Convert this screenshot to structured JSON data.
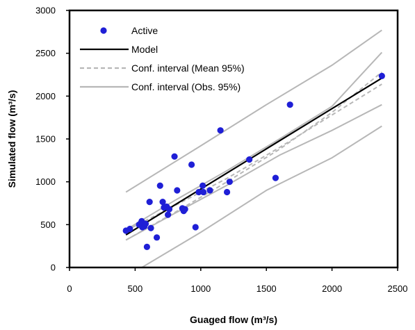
{
  "chart_data": {
    "type": "scatter",
    "xlabel": "Guaged flow (m³/s)",
    "ylabel": "Simulated flow (m³/s)",
    "xlim": [
      0,
      2500
    ],
    "ylim": [
      0,
      3000
    ],
    "xticks": [
      0,
      500,
      1000,
      1500,
      2000,
      2500
    ],
    "yticks": [
      0,
      500,
      1000,
      1500,
      2000,
      2500,
      3000
    ],
    "xtick_labels": [
      "0",
      "500",
      "1000",
      "1500",
      "2000",
      "2500"
    ],
    "ytick_labels": [
      "0",
      "500",
      "1000",
      "1500",
      "2000",
      "2500",
      "3000"
    ],
    "grid": false,
    "legend": {
      "placement": "top-left",
      "entries": [
        "Active",
        "Model",
        "Conf. interval (Mean 95%)",
        "Conf. interval (Obs. 95%)"
      ]
    },
    "series": [
      {
        "name": "Active",
        "kind": "scatter",
        "color": "#1f1fd6",
        "points": [
          [
            430,
            430
          ],
          [
            460,
            450
          ],
          [
            530,
            500
          ],
          [
            545,
            520
          ],
          [
            550,
            540
          ],
          [
            555,
            470
          ],
          [
            570,
            480
          ],
          [
            580,
            510
          ],
          [
            590,
            240
          ],
          [
            610,
            765
          ],
          [
            620,
            460
          ],
          [
            665,
            350
          ],
          [
            690,
            955
          ],
          [
            710,
            765
          ],
          [
            720,
            700
          ],
          [
            740,
            710
          ],
          [
            750,
            615
          ],
          [
            760,
            680
          ],
          [
            800,
            1295
          ],
          [
            820,
            900
          ],
          [
            860,
            690
          ],
          [
            870,
            660
          ],
          [
            880,
            680
          ],
          [
            930,
            1200
          ],
          [
            960,
            470
          ],
          [
            985,
            880
          ],
          [
            1015,
            955
          ],
          [
            1020,
            880
          ],
          [
            1070,
            900
          ],
          [
            1150,
            1600
          ],
          [
            1200,
            880
          ],
          [
            1220,
            1000
          ],
          [
            1370,
            1260
          ],
          [
            1570,
            1045
          ],
          [
            1680,
            1900
          ],
          [
            2380,
            2235
          ]
        ]
      },
      {
        "name": "Model",
        "kind": "line",
        "color": "#000000",
        "points": [
          [
            430,
            380
          ],
          [
            2380,
            2210
          ]
        ]
      },
      {
        "name": "Conf. interval (Mean 95%)",
        "kind": "line",
        "color": "#b7b7b7",
        "dashed": true,
        "lines": [
          [
            [
              430,
              430
            ],
            [
              800,
              720
            ],
            [
              1200,
              1040
            ],
            [
              1600,
              1400
            ],
            [
              2000,
              1780
            ],
            [
              2380,
              2140
            ]
          ],
          [
            [
              430,
              320
            ],
            [
              800,
              640
            ],
            [
              1200,
              1000
            ],
            [
              1600,
              1380
            ],
            [
              2000,
              1810
            ],
            [
              2380,
              2280
            ]
          ]
        ]
      },
      {
        "name": "Conf. interval (Obs. 95%)",
        "kind": "line",
        "color": "#b7b7b7",
        "dashed": false,
        "lines": [
          [
            [
              430,
              880
            ],
            [
              1000,
              1420
            ],
            [
              1500,
              1900
            ],
            [
              2000,
              2360
            ],
            [
              2380,
              2770
            ]
          ],
          [
            [
              430,
              -110
            ],
            [
              1000,
              410
            ],
            [
              1500,
              900
            ],
            [
              2000,
              1280
            ],
            [
              2380,
              1650
            ]
          ],
          [
            [
              430,
              440
            ],
            [
              800,
              780
            ],
            [
              1200,
              1130
            ],
            [
              1600,
              1500
            ],
            [
              2000,
              1880
            ],
            [
              2380,
              2510
            ]
          ],
          [
            [
              430,
              320
            ],
            [
              800,
              630
            ],
            [
              1200,
              960
            ],
            [
              1600,
              1310
            ],
            [
              2000,
              1600
            ],
            [
              2380,
              1900
            ]
          ]
        ]
      }
    ]
  }
}
